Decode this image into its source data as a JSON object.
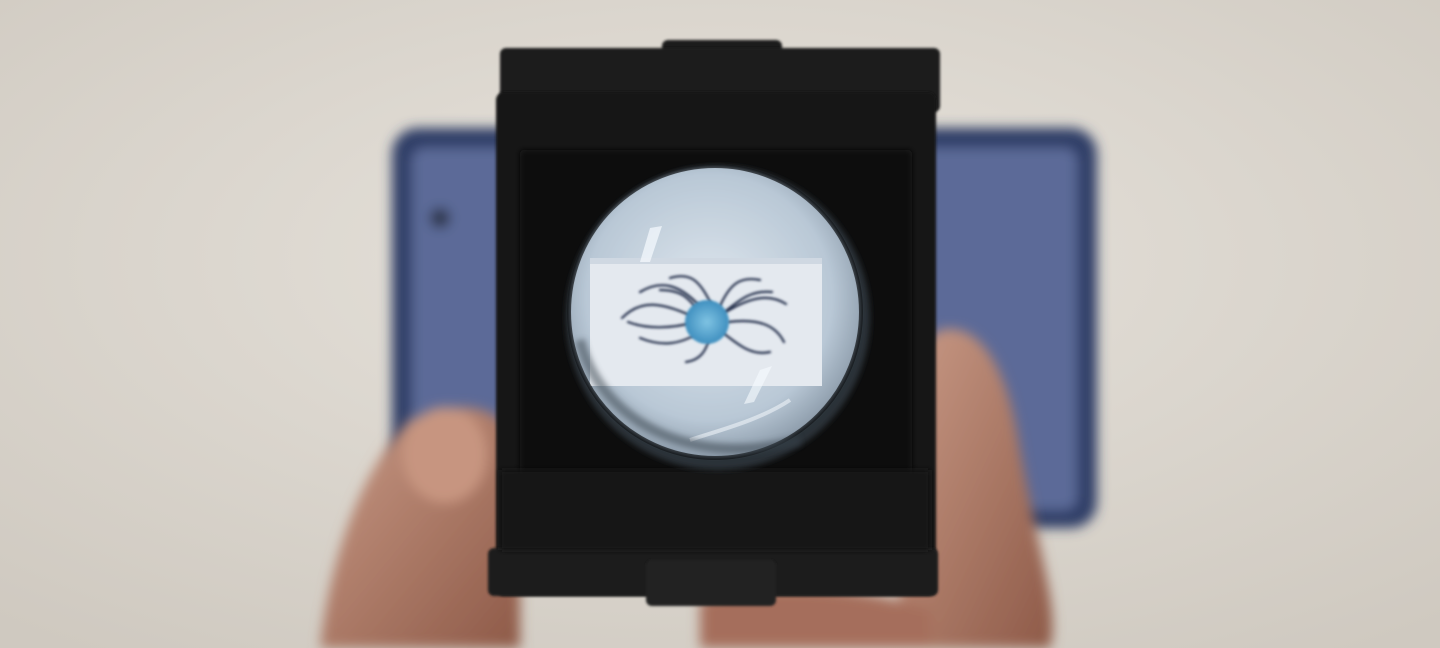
{
  "scene": {
    "description_label": "",
    "colors": {
      "wall": "#dcd7cf",
      "tablet_body": "#3c4b78",
      "tablet_screen": "#5e6e9c",
      "viewer_frame": "#141414",
      "lens_glass": "#c8d6e2",
      "paper": "#e3e8ee",
      "ink": "#242b4a",
      "center_blob": "#58a7d2",
      "skin": "#b07862"
    },
    "icons": [
      "camera-lens-icon"
    ]
  }
}
